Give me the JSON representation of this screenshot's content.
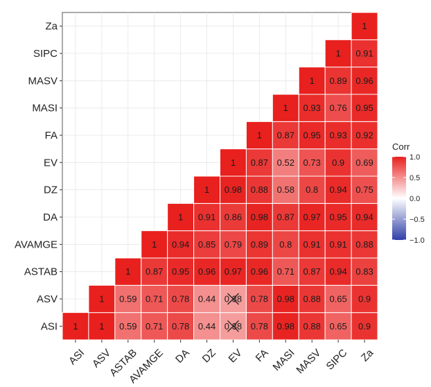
{
  "chart_data": {
    "type": "heatmap",
    "variables": [
      "ASI",
      "ASV",
      "ASTAB",
      "AVAMGE",
      "DA",
      "DZ",
      "EV",
      "FA",
      "MASI",
      "MASV",
      "SIPC",
      "Za"
    ],
    "cells": [
      {
        "x": "ASI",
        "y": "ASI",
        "value": 1,
        "label": "1"
      },
      {
        "x": "ASV",
        "y": "ASI",
        "value": 1,
        "label": "1"
      },
      {
        "x": "ASTAB",
        "y": "ASI",
        "value": 0.59,
        "label": "0.59"
      },
      {
        "x": "AVAMGE",
        "y": "ASI",
        "value": 0.71,
        "label": "0.71"
      },
      {
        "x": "DA",
        "y": "ASI",
        "value": 0.78,
        "label": "0.78"
      },
      {
        "x": "DZ",
        "y": "ASI",
        "value": 0.44,
        "label": "0.44"
      },
      {
        "x": "EV",
        "y": "ASI",
        "value": 0.38,
        "label": "0.38",
        "crossed": true
      },
      {
        "x": "FA",
        "y": "ASI",
        "value": 0.78,
        "label": "0.78"
      },
      {
        "x": "MASI",
        "y": "ASI",
        "value": 0.98,
        "label": "0.98"
      },
      {
        "x": "MASV",
        "y": "ASI",
        "value": 0.88,
        "label": "0.88"
      },
      {
        "x": "SIPC",
        "y": "ASI",
        "value": 0.65,
        "label": "0.65"
      },
      {
        "x": "Za",
        "y": "ASI",
        "value": 0.9,
        "label": "0.9"
      },
      {
        "x": "ASV",
        "y": "ASV",
        "value": 1,
        "label": "1"
      },
      {
        "x": "ASTAB",
        "y": "ASV",
        "value": 0.59,
        "label": "0.59"
      },
      {
        "x": "AVAMGE",
        "y": "ASV",
        "value": 0.71,
        "label": "0.71"
      },
      {
        "x": "DA",
        "y": "ASV",
        "value": 0.78,
        "label": "0.78"
      },
      {
        "x": "DZ",
        "y": "ASV",
        "value": 0.44,
        "label": "0.44"
      },
      {
        "x": "EV",
        "y": "ASV",
        "value": 0.38,
        "label": "0.38",
        "crossed": true
      },
      {
        "x": "FA",
        "y": "ASV",
        "value": 0.78,
        "label": "0.78"
      },
      {
        "x": "MASI",
        "y": "ASV",
        "value": 0.98,
        "label": "0.98"
      },
      {
        "x": "MASV",
        "y": "ASV",
        "value": 0.88,
        "label": "0.88"
      },
      {
        "x": "SIPC",
        "y": "ASV",
        "value": 0.65,
        "label": "0.65"
      },
      {
        "x": "Za",
        "y": "ASV",
        "value": 0.9,
        "label": "0.9"
      },
      {
        "x": "ASTAB",
        "y": "ASTAB",
        "value": 1,
        "label": "1"
      },
      {
        "x": "AVAMGE",
        "y": "ASTAB",
        "value": 0.87,
        "label": "0.87"
      },
      {
        "x": "DA",
        "y": "ASTAB",
        "value": 0.95,
        "label": "0.95"
      },
      {
        "x": "DZ",
        "y": "ASTAB",
        "value": 0.96,
        "label": "0.96"
      },
      {
        "x": "EV",
        "y": "ASTAB",
        "value": 0.97,
        "label": "0.97"
      },
      {
        "x": "FA",
        "y": "ASTAB",
        "value": 0.96,
        "label": "0.96"
      },
      {
        "x": "MASI",
        "y": "ASTAB",
        "value": 0.71,
        "label": "0.71"
      },
      {
        "x": "MASV",
        "y": "ASTAB",
        "value": 0.87,
        "label": "0.87"
      },
      {
        "x": "SIPC",
        "y": "ASTAB",
        "value": 0.94,
        "label": "0.94"
      },
      {
        "x": "Za",
        "y": "ASTAB",
        "value": 0.83,
        "label": "0.83"
      },
      {
        "x": "AVAMGE",
        "y": "AVAMGE",
        "value": 1,
        "label": "1"
      },
      {
        "x": "DA",
        "y": "AVAMGE",
        "value": 0.94,
        "label": "0.94"
      },
      {
        "x": "DZ",
        "y": "AVAMGE",
        "value": 0.85,
        "label": "0.85"
      },
      {
        "x": "EV",
        "y": "AVAMGE",
        "value": 0.79,
        "label": "0.79"
      },
      {
        "x": "FA",
        "y": "AVAMGE",
        "value": 0.89,
        "label": "0.89"
      },
      {
        "x": "MASI",
        "y": "AVAMGE",
        "value": 0.8,
        "label": "0.8"
      },
      {
        "x": "MASV",
        "y": "AVAMGE",
        "value": 0.91,
        "label": "0.91"
      },
      {
        "x": "SIPC",
        "y": "AVAMGE",
        "value": 0.91,
        "label": "0.91"
      },
      {
        "x": "Za",
        "y": "AVAMGE",
        "value": 0.88,
        "label": "0.88"
      },
      {
        "x": "DA",
        "y": "DA",
        "value": 1,
        "label": "1"
      },
      {
        "x": "DZ",
        "y": "DA",
        "value": 0.91,
        "label": "0.91"
      },
      {
        "x": "EV",
        "y": "DA",
        "value": 0.86,
        "label": "0.86"
      },
      {
        "x": "FA",
        "y": "DA",
        "value": 0.98,
        "label": "0.98"
      },
      {
        "x": "MASI",
        "y": "DA",
        "value": 0.87,
        "label": "0.87"
      },
      {
        "x": "MASV",
        "y": "DA",
        "value": 0.97,
        "label": "0.97"
      },
      {
        "x": "SIPC",
        "y": "DA",
        "value": 0.95,
        "label": "0.95"
      },
      {
        "x": "Za",
        "y": "DA",
        "value": 0.94,
        "label": "0.94"
      },
      {
        "x": "DZ",
        "y": "DZ",
        "value": 1,
        "label": "1"
      },
      {
        "x": "EV",
        "y": "DZ",
        "value": 0.98,
        "label": "0.98"
      },
      {
        "x": "FA",
        "y": "DZ",
        "value": 0.88,
        "label": "0.88"
      },
      {
        "x": "MASI",
        "y": "DZ",
        "value": 0.58,
        "label": "0.58"
      },
      {
        "x": "MASV",
        "y": "DZ",
        "value": 0.8,
        "label": "0.8"
      },
      {
        "x": "SIPC",
        "y": "DZ",
        "value": 0.94,
        "label": "0.94"
      },
      {
        "x": "Za",
        "y": "DZ",
        "value": 0.75,
        "label": "0.75"
      },
      {
        "x": "EV",
        "y": "EV",
        "value": 1,
        "label": "1"
      },
      {
        "x": "FA",
        "y": "EV",
        "value": 0.87,
        "label": "0.87"
      },
      {
        "x": "MASI",
        "y": "EV",
        "value": 0.52,
        "label": "0.52"
      },
      {
        "x": "MASV",
        "y": "EV",
        "value": 0.73,
        "label": "0.73"
      },
      {
        "x": "SIPC",
        "y": "EV",
        "value": 0.9,
        "label": "0.9"
      },
      {
        "x": "Za",
        "y": "EV",
        "value": 0.69,
        "label": "0.69"
      },
      {
        "x": "FA",
        "y": "FA",
        "value": 1,
        "label": "1"
      },
      {
        "x": "MASI",
        "y": "FA",
        "value": 0.87,
        "label": "0.87"
      },
      {
        "x": "MASV",
        "y": "FA",
        "value": 0.95,
        "label": "0.95"
      },
      {
        "x": "SIPC",
        "y": "FA",
        "value": 0.93,
        "label": "0.93"
      },
      {
        "x": "Za",
        "y": "FA",
        "value": 0.92,
        "label": "0.92"
      },
      {
        "x": "MASI",
        "y": "MASI",
        "value": 1,
        "label": "1"
      },
      {
        "x": "MASV",
        "y": "MASI",
        "value": 0.93,
        "label": "0.93"
      },
      {
        "x": "SIPC",
        "y": "MASI",
        "value": 0.76,
        "label": "0.76"
      },
      {
        "x": "Za",
        "y": "MASI",
        "value": 0.95,
        "label": "0.95"
      },
      {
        "x": "MASV",
        "y": "MASV",
        "value": 1,
        "label": "1"
      },
      {
        "x": "SIPC",
        "y": "MASV",
        "value": 0.89,
        "label": "0.89"
      },
      {
        "x": "Za",
        "y": "MASV",
        "value": 0.96,
        "label": "0.96"
      },
      {
        "x": "SIPC",
        "y": "SIPC",
        "value": 1,
        "label": "1"
      },
      {
        "x": "Za",
        "y": "SIPC",
        "value": 0.91,
        "label": "0.91"
      },
      {
        "x": "Za",
        "y": "Za",
        "value": 1,
        "label": "1"
      }
    ],
    "color_scale": {
      "low": "#2e3fa8",
      "mid": "#ffffff",
      "high": "#e8201e",
      "limits": [
        -1,
        1
      ]
    },
    "legend": {
      "title": "Corr",
      "ticks": [
        "1.0",
        "0.5",
        "0.0",
        "−0.5",
        "−1.0"
      ],
      "position": "right"
    },
    "grid": true
  }
}
